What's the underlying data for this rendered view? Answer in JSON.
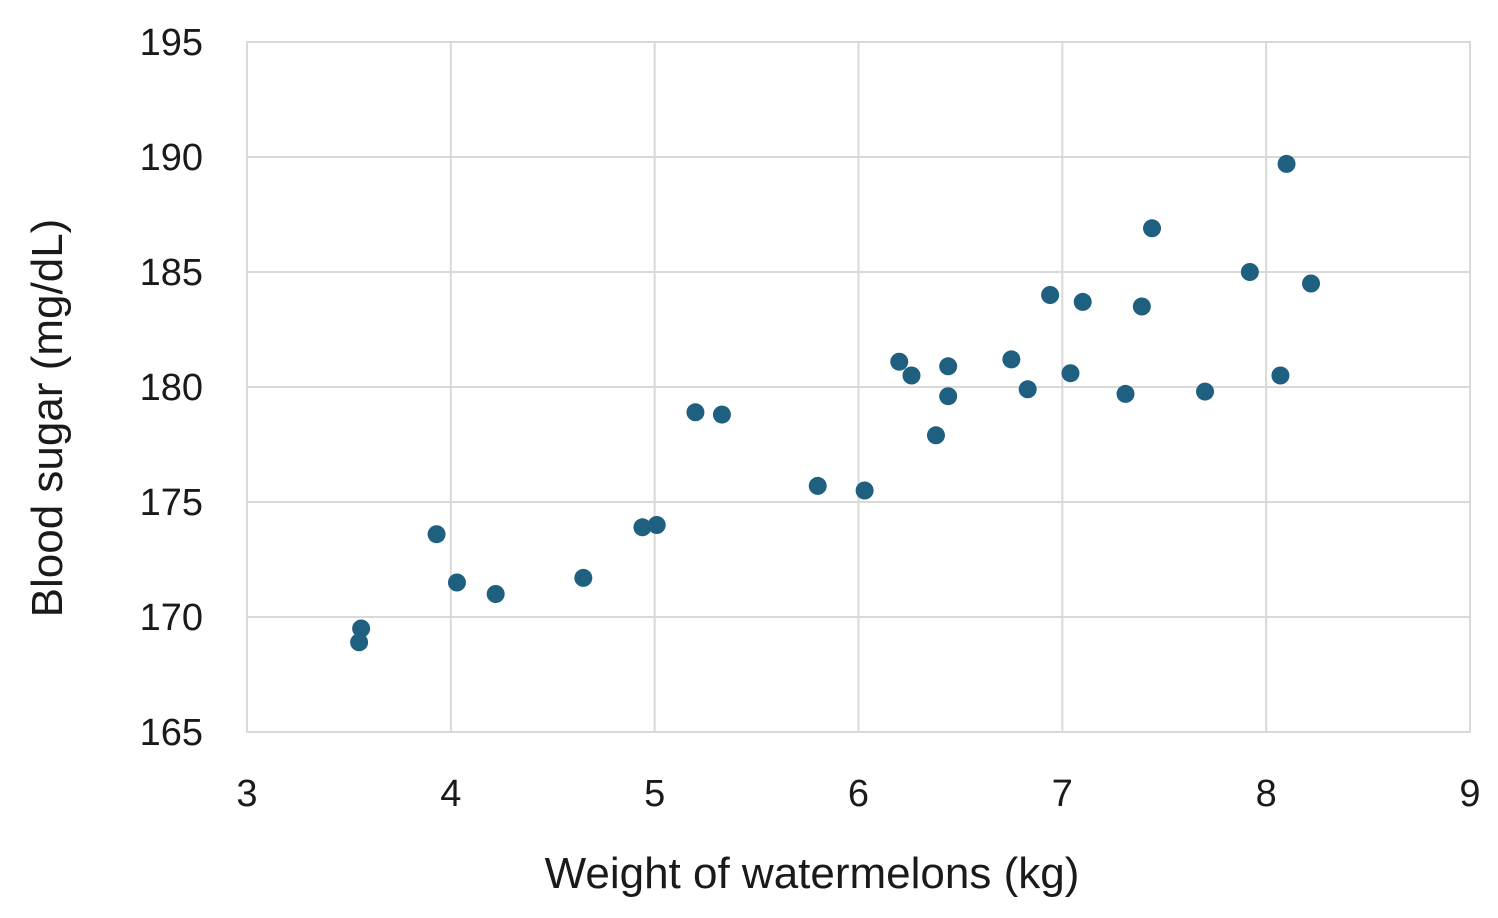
{
  "chart_data": {
    "type": "scatter",
    "title": "",
    "xlabel": "Weight of watermelons (kg)",
    "ylabel": "Blood sugar (mg/dL)",
    "xlim": [
      3,
      9
    ],
    "ylim": [
      165,
      195
    ],
    "xticks": [
      3,
      4,
      5,
      6,
      7,
      8,
      9
    ],
    "yticks": [
      165,
      170,
      175,
      180,
      185,
      190,
      195
    ],
    "grid": true,
    "marker_color": "#1f5f7f",
    "series": [
      {
        "points": [
          {
            "x": 3.55,
            "y": 168.9
          },
          {
            "x": 3.56,
            "y": 169.5
          },
          {
            "x": 3.93,
            "y": 173.6
          },
          {
            "x": 4.03,
            "y": 171.5
          },
          {
            "x": 4.22,
            "y": 171.0
          },
          {
            "x": 4.65,
            "y": 171.7
          },
          {
            "x": 4.94,
            "y": 173.9
          },
          {
            "x": 5.01,
            "y": 174.0
          },
          {
            "x": 5.2,
            "y": 178.9
          },
          {
            "x": 5.33,
            "y": 178.8
          },
          {
            "x": 5.8,
            "y": 175.7
          },
          {
            "x": 6.03,
            "y": 175.5
          },
          {
            "x": 6.2,
            "y": 181.1
          },
          {
            "x": 6.26,
            "y": 180.5
          },
          {
            "x": 6.38,
            "y": 177.9
          },
          {
            "x": 6.44,
            "y": 180.9
          },
          {
            "x": 6.44,
            "y": 179.6
          },
          {
            "x": 6.75,
            "y": 181.2
          },
          {
            "x": 6.83,
            "y": 179.9
          },
          {
            "x": 6.94,
            "y": 184.0
          },
          {
            "x": 7.04,
            "y": 180.6
          },
          {
            "x": 7.1,
            "y": 183.7
          },
          {
            "x": 7.31,
            "y": 179.7
          },
          {
            "x": 7.39,
            "y": 183.5
          },
          {
            "x": 7.44,
            "y": 186.9
          },
          {
            "x": 7.7,
            "y": 179.8
          },
          {
            "x": 7.92,
            "y": 185.0
          },
          {
            "x": 8.07,
            "y": 180.5
          },
          {
            "x": 8.1,
            "y": 189.7
          },
          {
            "x": 8.22,
            "y": 184.5
          }
        ]
      }
    ]
  }
}
